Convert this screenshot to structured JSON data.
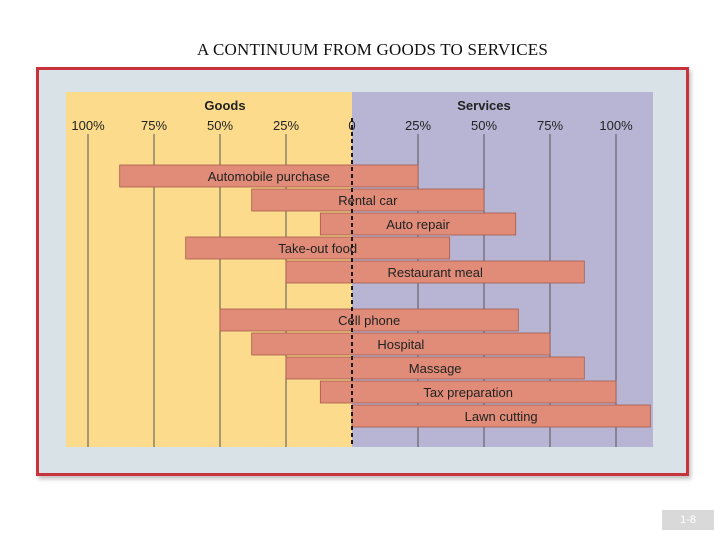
{
  "slide": {
    "title": "A CONTINUUM FROM GOODS TO SERVICES",
    "page_number": "1-8"
  },
  "colors": {
    "goods_bg": "#fcdc8c",
    "services_bg": "#b8b4d4",
    "bar_fill": "#e08c78",
    "bar_stroke": "#a85a4a",
    "frame_border": "#c8323c",
    "frame_bg": "#d8e2e7",
    "grid": "#555555",
    "divider": "#1a1a1a"
  },
  "chart_data": {
    "type": "bar",
    "orientation": "horizontal",
    "headers": {
      "left": "Goods",
      "right": "Services"
    },
    "x_tick_labels": [
      "100%",
      "75%",
      "50%",
      "25%",
      "0",
      "25%",
      "50%",
      "75%",
      "100%"
    ],
    "x_ticks": [
      -100,
      -75,
      -50,
      -25,
      0,
      25,
      50,
      75,
      100
    ],
    "xlim": [
      -100,
      100
    ],
    "grid": true,
    "divider_at": 0,
    "unit": "%",
    "series": [
      {
        "label": "Automobile purchase",
        "goods": 88,
        "services": 25
      },
      {
        "label": "Rental car",
        "goods": 38,
        "services": 50
      },
      {
        "label": "Auto repair",
        "goods": 12,
        "services": 62
      },
      {
        "label": "Take-out food",
        "goods": 63,
        "services": 37
      },
      {
        "label": "Restaurant meal",
        "goods": 25,
        "services": 88
      },
      {
        "label": "Cell phone",
        "goods": 50,
        "services": 63
      },
      {
        "label": "Hospital",
        "goods": 38,
        "services": 75
      },
      {
        "label": "Massage",
        "goods": 25,
        "services": 88
      },
      {
        "label": "Tax preparation",
        "goods": 12,
        "services": 100
      },
      {
        "label": "Lawn cutting",
        "goods": 0,
        "services": 113
      }
    ]
  }
}
